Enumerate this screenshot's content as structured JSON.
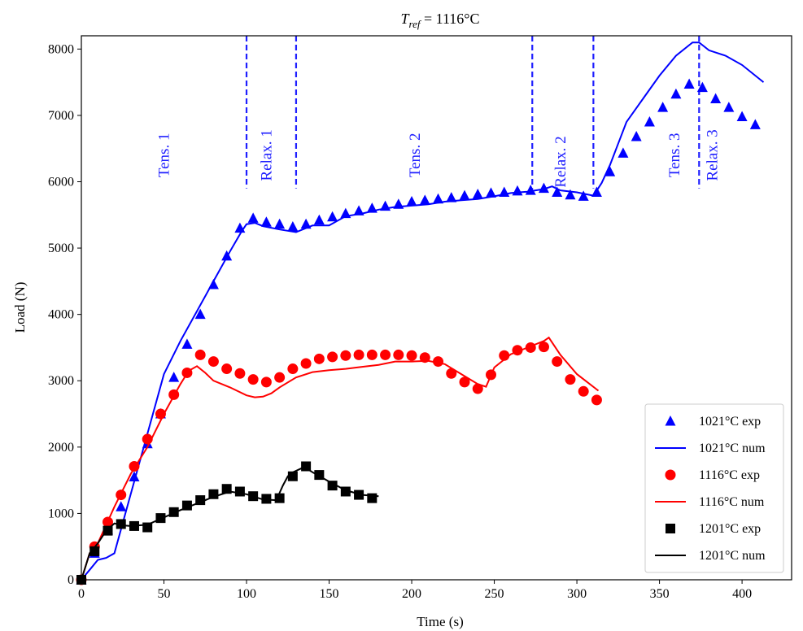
{
  "chart_data": {
    "type": "line",
    "title_prefix": "T",
    "title_sub": "ref",
    "title_suffix": " = 1116°C",
    "xlabel": "Time (s)",
    "ylabel": "Load (N)",
    "xlim": [
      0,
      430
    ],
    "ylim": [
      0,
      8200
    ],
    "xticks": [
      0,
      50,
      100,
      150,
      200,
      250,
      300,
      350,
      400
    ],
    "yticks": [
      0,
      1000,
      2000,
      3000,
      4000,
      5000,
      6000,
      7000,
      8000
    ],
    "grid": false,
    "legend_position": "lower-right",
    "phase_lines_x": [
      100,
      130,
      273,
      310,
      374
    ],
    "phase_labels": [
      {
        "text": "Tens. 1",
        "x": 53,
        "y": 6400
      },
      {
        "text": "Relax. 1",
        "x": 115,
        "y": 6400
      },
      {
        "text": "Tens. 2",
        "x": 205,
        "y": 6400
      },
      {
        "text": "Relax. 2",
        "x": 293,
        "y": 6300
      },
      {
        "text": "Tens. 3",
        "x": 362,
        "y": 6400
      },
      {
        "text": "Relax. 3",
        "x": 385,
        "y": 6400
      }
    ],
    "series": [
      {
        "name": "1021°C exp",
        "kind": "marker",
        "marker": "triangle",
        "color": "#0000ff",
        "x": [
          0,
          8,
          16,
          24,
          32,
          40,
          48,
          56,
          64,
          72,
          80,
          88,
          96,
          104,
          112,
          120,
          128,
          136,
          144,
          152,
          160,
          168,
          176,
          184,
          192,
          200,
          208,
          216,
          224,
          232,
          240,
          248,
          256,
          264,
          272,
          280,
          288,
          296,
          304,
          312,
          320,
          328,
          336,
          344,
          352,
          360,
          368,
          376,
          384,
          392,
          400,
          408
        ],
        "y": [
          0,
          400,
          750,
          1100,
          1550,
          2050,
          2500,
          3050,
          3550,
          4000,
          4450,
          4880,
          5300,
          5450,
          5390,
          5360,
          5320,
          5360,
          5420,
          5470,
          5520,
          5560,
          5600,
          5630,
          5660,
          5700,
          5720,
          5740,
          5760,
          5790,
          5810,
          5830,
          5840,
          5860,
          5870,
          5900,
          5840,
          5800,
          5780,
          5840,
          6150,
          6430,
          6680,
          6900,
          7120,
          7320,
          7470,
          7420,
          7250,
          7120,
          6980,
          6860
        ]
      },
      {
        "name": "1021°C num",
        "kind": "line",
        "color": "#0000ff",
        "x": [
          0,
          5,
          10,
          15,
          20,
          30,
          40,
          50,
          60,
          70,
          80,
          90,
          97,
          100,
          105,
          110,
          120,
          130,
          140,
          150,
          160,
          170,
          180,
          190,
          200,
          210,
          220,
          230,
          240,
          250,
          260,
          270,
          275,
          280,
          285,
          290,
          300,
          306,
          310,
          315,
          320,
          330,
          340,
          350,
          360,
          370,
          374,
          380,
          390,
          400,
          413
        ],
        "y": [
          0,
          150,
          300,
          330,
          400,
          1300,
          2200,
          3100,
          3600,
          4050,
          4500,
          4950,
          5250,
          5360,
          5380,
          5330,
          5280,
          5240,
          5340,
          5340,
          5480,
          5520,
          5580,
          5620,
          5640,
          5660,
          5700,
          5720,
          5740,
          5780,
          5830,
          5850,
          5870,
          5890,
          5930,
          5870,
          5840,
          5810,
          5790,
          5980,
          6250,
          6900,
          7250,
          7600,
          7900,
          8100,
          8100,
          7980,
          7900,
          7760,
          7500
        ]
      },
      {
        "name": "1116°C exp",
        "kind": "marker",
        "marker": "circle",
        "color": "#ff0000",
        "x": [
          0,
          8,
          16,
          24,
          32,
          40,
          48,
          56,
          64,
          72,
          80,
          88,
          96,
          104,
          112,
          120,
          128,
          136,
          144,
          152,
          160,
          168,
          176,
          184,
          192,
          200,
          208,
          216,
          224,
          232,
          240,
          248,
          256,
          264,
          272,
          280,
          288,
          296,
          304,
          312
        ],
        "y": [
          0,
          500,
          870,
          1280,
          1710,
          2120,
          2500,
          2790,
          3120,
          3390,
          3290,
          3180,
          3110,
          3020,
          2980,
          3050,
          3180,
          3260,
          3330,
          3360,
          3380,
          3390,
          3390,
          3390,
          3390,
          3380,
          3350,
          3290,
          3110,
          2980,
          2880,
          3090,
          3380,
          3460,
          3500,
          3510,
          3290,
          3020,
          2840,
          2710
        ]
      },
      {
        "name": "1116°C num",
        "kind": "line",
        "color": "#ff0000",
        "x": [
          0,
          5,
          10,
          20,
          30,
          40,
          50,
          60,
          65,
          70,
          75,
          80,
          90,
          100,
          105,
          110,
          115,
          120,
          130,
          140,
          150,
          160,
          170,
          180,
          190,
          200,
          210,
          220,
          230,
          240,
          245,
          250,
          260,
          270,
          280,
          283,
          290,
          300,
          313
        ],
        "y": [
          0,
          400,
          550,
          1100,
          1600,
          2000,
          2500,
          2950,
          3150,
          3220,
          3120,
          3000,
          2900,
          2780,
          2750,
          2760,
          2810,
          2900,
          3050,
          3130,
          3160,
          3180,
          3210,
          3240,
          3290,
          3290,
          3300,
          3250,
          3100,
          2950,
          2910,
          3200,
          3400,
          3500,
          3600,
          3650,
          3390,
          3100,
          2850
        ]
      },
      {
        "name": "1201°C exp",
        "kind": "marker",
        "marker": "square",
        "color": "#000000",
        "x": [
          0,
          8,
          16,
          24,
          32,
          40,
          48,
          56,
          64,
          72,
          80,
          88,
          96,
          104,
          112,
          120,
          128,
          136,
          144,
          152,
          160,
          168,
          176
        ],
        "y": [
          0,
          430,
          740,
          840,
          810,
          790,
          930,
          1020,
          1120,
          1200,
          1290,
          1370,
          1330,
          1260,
          1220,
          1230,
          1560,
          1710,
          1580,
          1420,
          1330,
          1280,
          1230
        ]
      },
      {
        "name": "1201°C num",
        "kind": "line",
        "color": "#000000",
        "x": [
          0,
          5,
          10,
          15,
          20,
          25,
          30,
          40,
          50,
          60,
          70,
          80,
          90,
          100,
          110,
          118,
          122,
          125,
          128,
          135,
          140,
          150,
          160,
          170,
          180
        ],
        "y": [
          0,
          400,
          550,
          740,
          850,
          820,
          810,
          830,
          940,
          1050,
          1150,
          1250,
          1330,
          1290,
          1210,
          1200,
          1420,
          1560,
          1620,
          1700,
          1620,
          1480,
          1350,
          1280,
          1260
        ]
      }
    ]
  }
}
